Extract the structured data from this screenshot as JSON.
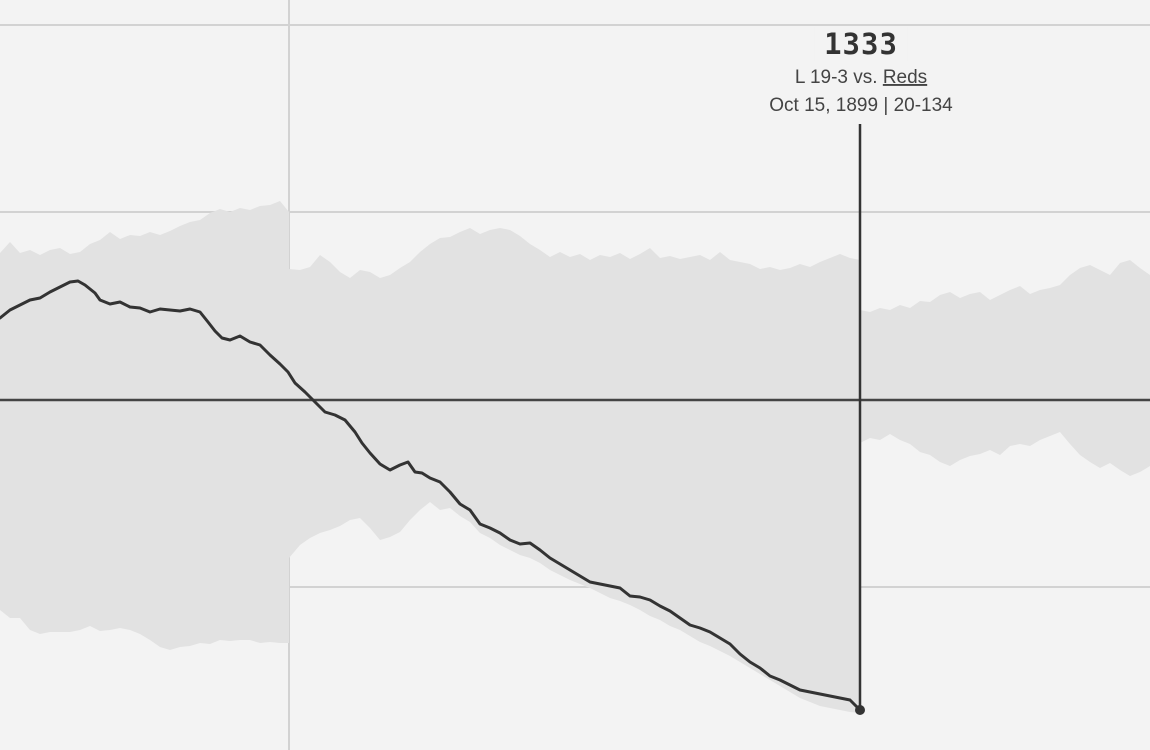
{
  "colors": {
    "background": "#f3f3f3",
    "grid": "#d2d2d2",
    "band": "#e2e2e2",
    "line": "#333333",
    "zero_line": "#444444"
  },
  "tooltip": {
    "value": "1333",
    "result_prefix": "L 19-3 vs. ",
    "opponent": "Reds",
    "date": "Oct 15, 1899",
    "record_prefix": " | ",
    "record": "20-134"
  },
  "chart_data": {
    "type": "area",
    "grid": true,
    "x_range": [
      0,
      1150
    ],
    "y_range": [
      -350,
      400
    ],
    "x_gridlines": [
      289
    ],
    "y_gridlines": [
      -187,
      188,
      375
    ],
    "zero_line": 0,
    "cursor_x": 860,
    "series": [
      {
        "values": [
          [
            0,
            82
          ],
          [
            10,
            90
          ],
          [
            20,
            95
          ],
          [
            30,
            100
          ],
          [
            40,
            102
          ],
          [
            50,
            108
          ],
          [
            60,
            113
          ],
          [
            70,
            118
          ],
          [
            78,
            119
          ],
          [
            85,
            115
          ],
          [
            95,
            107
          ],
          [
            100,
            100
          ],
          [
            110,
            96
          ],
          [
            120,
            98
          ],
          [
            130,
            93
          ],
          [
            140,
            92
          ],
          [
            150,
            88
          ],
          [
            160,
            91
          ],
          [
            170,
            90
          ],
          [
            180,
            89
          ],
          [
            190,
            91
          ],
          [
            200,
            88
          ],
          [
            208,
            78
          ],
          [
            215,
            69
          ],
          [
            222,
            62
          ],
          [
            230,
            60
          ],
          [
            240,
            64
          ],
          [
            250,
            58
          ],
          [
            260,
            55
          ],
          [
            270,
            45
          ],
          [
            280,
            36
          ],
          [
            288,
            28
          ],
          [
            295,
            17
          ],
          [
            305,
            8
          ],
          [
            315,
            -2
          ],
          [
            325,
            -12
          ],
          [
            335,
            -15
          ],
          [
            345,
            -20
          ],
          [
            355,
            -32
          ],
          [
            362,
            -43
          ],
          [
            370,
            -53
          ],
          [
            380,
            -64
          ],
          [
            390,
            -70
          ],
          [
            400,
            -65
          ],
          [
            408,
            -62
          ],
          [
            415,
            -72
          ],
          [
            422,
            -73
          ],
          [
            430,
            -78
          ],
          [
            440,
            -82
          ],
          [
            450,
            -92
          ],
          [
            460,
            -104
          ],
          [
            470,
            -110
          ],
          [
            480,
            -124
          ],
          [
            490,
            -128
          ],
          [
            500,
            -133
          ],
          [
            510,
            -140
          ],
          [
            520,
            -144
          ],
          [
            530,
            -143
          ],
          [
            540,
            -150
          ],
          [
            550,
            -158
          ],
          [
            560,
            -164
          ],
          [
            570,
            -170
          ],
          [
            580,
            -176
          ],
          [
            590,
            -182
          ],
          [
            600,
            -184
          ],
          [
            610,
            -186
          ],
          [
            620,
            -188
          ],
          [
            630,
            -196
          ],
          [
            640,
            -197
          ],
          [
            650,
            -200
          ],
          [
            660,
            -206
          ],
          [
            670,
            -211
          ],
          [
            680,
            -218
          ],
          [
            690,
            -225
          ],
          [
            700,
            -228
          ],
          [
            710,
            -232
          ],
          [
            720,
            -238
          ],
          [
            730,
            -244
          ],
          [
            740,
            -254
          ],
          [
            750,
            -262
          ],
          [
            760,
            -268
          ],
          [
            770,
            -276
          ],
          [
            780,
            -280
          ],
          [
            790,
            -285
          ],
          [
            800,
            -290
          ],
          [
            810,
            -292
          ],
          [
            820,
            -294
          ],
          [
            830,
            -296
          ],
          [
            840,
            -298
          ],
          [
            850,
            -300
          ],
          [
            860,
            -310
          ]
        ]
      }
    ],
    "band_upper": [
      [
        0,
        147
      ],
      [
        10,
        158
      ],
      [
        20,
        147
      ],
      [
        30,
        150
      ],
      [
        40,
        145
      ],
      [
        50,
        150
      ],
      [
        60,
        152
      ],
      [
        70,
        146
      ],
      [
        80,
        148
      ],
      [
        90,
        156
      ],
      [
        100,
        160
      ],
      [
        110,
        168
      ],
      [
        120,
        161
      ],
      [
        130,
        165
      ],
      [
        140,
        164
      ],
      [
        150,
        168
      ],
      [
        160,
        165
      ],
      [
        170,
        169
      ],
      [
        180,
        174
      ],
      [
        190,
        178
      ],
      [
        200,
        180
      ],
      [
        210,
        187
      ],
      [
        220,
        191
      ],
      [
        230,
        188
      ],
      [
        240,
        192
      ],
      [
        250,
        190
      ],
      [
        260,
        194
      ],
      [
        270,
        195
      ],
      [
        280,
        199
      ],
      [
        289,
        188
      ],
      [
        289,
        131
      ],
      [
        300,
        130
      ],
      [
        310,
        133
      ],
      [
        320,
        145
      ],
      [
        330,
        138
      ],
      [
        340,
        128
      ],
      [
        350,
        122
      ],
      [
        360,
        130
      ],
      [
        370,
        128
      ],
      [
        380,
        122
      ],
      [
        390,
        125
      ],
      [
        400,
        132
      ],
      [
        410,
        138
      ],
      [
        420,
        148
      ],
      [
        430,
        156
      ],
      [
        440,
        162
      ],
      [
        450,
        163
      ],
      [
        460,
        168
      ],
      [
        470,
        172
      ],
      [
        480,
        166
      ],
      [
        490,
        170
      ],
      [
        500,
        172
      ],
      [
        510,
        170
      ],
      [
        520,
        164
      ],
      [
        530,
        156
      ],
      [
        540,
        150
      ],
      [
        550,
        143
      ],
      [
        560,
        148
      ],
      [
        570,
        143
      ],
      [
        580,
        146
      ],
      [
        590,
        140
      ],
      [
        600,
        145
      ],
      [
        610,
        143
      ],
      [
        620,
        147
      ],
      [
        630,
        141
      ],
      [
        640,
        146
      ],
      [
        650,
        152
      ],
      [
        660,
        142
      ],
      [
        670,
        144
      ],
      [
        680,
        141
      ],
      [
        690,
        143
      ],
      [
        700,
        145
      ],
      [
        710,
        140
      ],
      [
        720,
        148
      ],
      [
        730,
        140
      ],
      [
        740,
        138
      ],
      [
        750,
        136
      ],
      [
        760,
        131
      ],
      [
        770,
        133
      ],
      [
        780,
        130
      ],
      [
        790,
        132
      ],
      [
        800,
        136
      ],
      [
        810,
        133
      ],
      [
        820,
        138
      ],
      [
        830,
        142
      ],
      [
        840,
        146
      ],
      [
        850,
        142
      ],
      [
        860,
        140
      ],
      [
        860,
        90
      ],
      [
        870,
        88
      ],
      [
        880,
        92
      ],
      [
        890,
        90
      ],
      [
        900,
        95
      ],
      [
        910,
        92
      ],
      [
        920,
        99
      ],
      [
        930,
        98
      ],
      [
        940,
        105
      ],
      [
        950,
        108
      ],
      [
        960,
        102
      ],
      [
        970,
        106
      ],
      [
        980,
        108
      ],
      [
        990,
        100
      ],
      [
        1000,
        105
      ],
      [
        1010,
        110
      ],
      [
        1020,
        114
      ],
      [
        1030,
        106
      ],
      [
        1040,
        110
      ],
      [
        1050,
        112
      ],
      [
        1060,
        115
      ],
      [
        1070,
        125
      ],
      [
        1080,
        132
      ],
      [
        1090,
        135
      ],
      [
        1100,
        130
      ],
      [
        1110,
        125
      ],
      [
        1120,
        137
      ],
      [
        1130,
        140
      ],
      [
        1140,
        132
      ],
      [
        1150,
        125
      ]
    ],
    "band_lower": [
      [
        0,
        -210
      ],
      [
        10,
        -218
      ],
      [
        20,
        -218
      ],
      [
        30,
        -230
      ],
      [
        40,
        -234
      ],
      [
        50,
        -232
      ],
      [
        60,
        -232
      ],
      [
        70,
        -232
      ],
      [
        80,
        -230
      ],
      [
        90,
        -226
      ],
      [
        100,
        -231
      ],
      [
        110,
        -230
      ],
      [
        120,
        -228
      ],
      [
        130,
        -230
      ],
      [
        140,
        -234
      ],
      [
        150,
        -240
      ],
      [
        160,
        -247
      ],
      [
        170,
        -250
      ],
      [
        180,
        -247
      ],
      [
        190,
        -246
      ],
      [
        200,
        -243
      ],
      [
        210,
        -244
      ],
      [
        220,
        -240
      ],
      [
        230,
        -241
      ],
      [
        240,
        -240
      ],
      [
        250,
        -240
      ],
      [
        260,
        -243
      ],
      [
        270,
        -242
      ],
      [
        280,
        -243
      ],
      [
        289,
        -243
      ],
      [
        289,
        -158
      ],
      [
        300,
        -145
      ],
      [
        310,
        -138
      ],
      [
        320,
        -133
      ],
      [
        330,
        -130
      ],
      [
        340,
        -126
      ],
      [
        350,
        -120
      ],
      [
        360,
        -118
      ],
      [
        370,
        -128
      ],
      [
        380,
        -140
      ],
      [
        390,
        -137
      ],
      [
        400,
        -132
      ],
      [
        410,
        -120
      ],
      [
        420,
        -110
      ],
      [
        430,
        -102
      ],
      [
        440,
        -110
      ],
      [
        450,
        -108
      ],
      [
        460,
        -116
      ],
      [
        470,
        -122
      ],
      [
        480,
        -133
      ],
      [
        490,
        -138
      ],
      [
        500,
        -145
      ],
      [
        510,
        -150
      ],
      [
        520,
        -155
      ],
      [
        530,
        -158
      ],
      [
        540,
        -163
      ],
      [
        550,
        -170
      ],
      [
        560,
        -175
      ],
      [
        570,
        -180
      ],
      [
        580,
        -184
      ],
      [
        590,
        -188
      ],
      [
        600,
        -193
      ],
      [
        610,
        -198
      ],
      [
        620,
        -201
      ],
      [
        630,
        -205
      ],
      [
        640,
        -210
      ],
      [
        650,
        -216
      ],
      [
        660,
        -220
      ],
      [
        670,
        -226
      ],
      [
        680,
        -230
      ],
      [
        690,
        -236
      ],
      [
        700,
        -242
      ],
      [
        710,
        -246
      ],
      [
        720,
        -251
      ],
      [
        730,
        -256
      ],
      [
        740,
        -262
      ],
      [
        750,
        -268
      ],
      [
        760,
        -274
      ],
      [
        770,
        -280
      ],
      [
        780,
        -286
      ],
      [
        790,
        -292
      ],
      [
        800,
        -298
      ],
      [
        810,
        -302
      ],
      [
        820,
        -306
      ],
      [
        830,
        -308
      ],
      [
        840,
        -310
      ],
      [
        850,
        -312
      ],
      [
        860,
        -313
      ],
      [
        860,
        -43
      ],
      [
        870,
        -38
      ],
      [
        880,
        -40
      ],
      [
        890,
        -34
      ],
      [
        900,
        -40
      ],
      [
        910,
        -44
      ],
      [
        920,
        -52
      ],
      [
        930,
        -55
      ],
      [
        940,
        -62
      ],
      [
        950,
        -66
      ],
      [
        960,
        -60
      ],
      [
        970,
        -56
      ],
      [
        980,
        -54
      ],
      [
        990,
        -50
      ],
      [
        1000,
        -55
      ],
      [
        1010,
        -46
      ],
      [
        1020,
        -44
      ],
      [
        1030,
        -46
      ],
      [
        1040,
        -40
      ],
      [
        1050,
        -36
      ],
      [
        1060,
        -32
      ],
      [
        1070,
        -44
      ],
      [
        1080,
        -55
      ],
      [
        1090,
        -62
      ],
      [
        1100,
        -68
      ],
      [
        1110,
        -63
      ],
      [
        1120,
        -70
      ],
      [
        1130,
        -76
      ],
      [
        1140,
        -72
      ],
      [
        1150,
        -66
      ]
    ]
  }
}
